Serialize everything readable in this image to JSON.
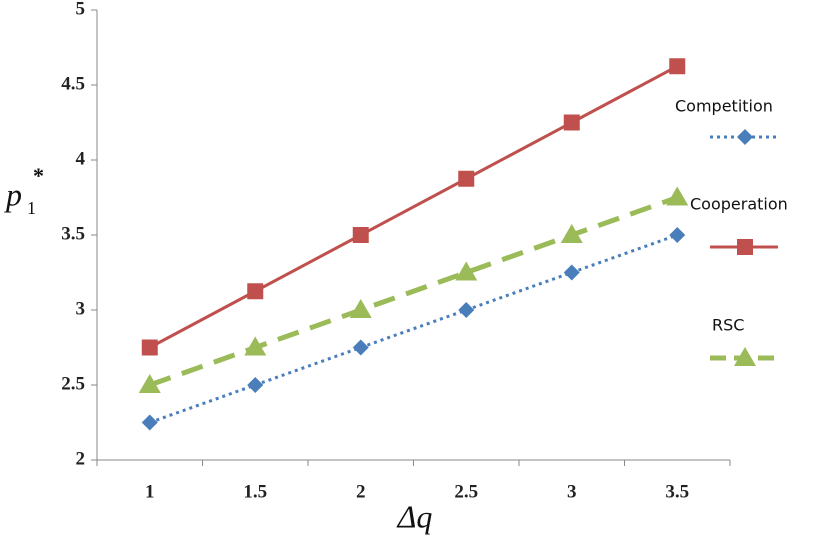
{
  "chart_data": {
    "type": "line",
    "categories": [
      "1",
      "1.5",
      "2",
      "2.5",
      "3",
      "3.5"
    ],
    "series": [
      {
        "name": "Competition",
        "color": "#4a7ebb",
        "style": "dotted",
        "marker": "diamond",
        "values": [
          2.25,
          2.5,
          2.75,
          3.0,
          3.25,
          3.5
        ]
      },
      {
        "name": "Cooperation",
        "color": "#c0504d",
        "style": "solid",
        "marker": "square",
        "values": [
          2.75,
          3.125,
          3.5,
          3.875,
          4.25,
          4.625
        ]
      },
      {
        "name": "RSC",
        "color": "#9bbb59",
        "style": "dashed",
        "marker": "triangle",
        "values": [
          2.5,
          2.75,
          3.0,
          3.25,
          3.5,
          3.75
        ]
      }
    ],
    "ylim": [
      2,
      5
    ],
    "yticks": [
      2,
      2.5,
      3,
      3.5,
      4,
      4.5,
      5
    ],
    "x_label": "Δq",
    "y_label": "p",
    "y_label_sub": "1",
    "y_label_sup": "*",
    "legend": "right",
    "grid": false
  }
}
